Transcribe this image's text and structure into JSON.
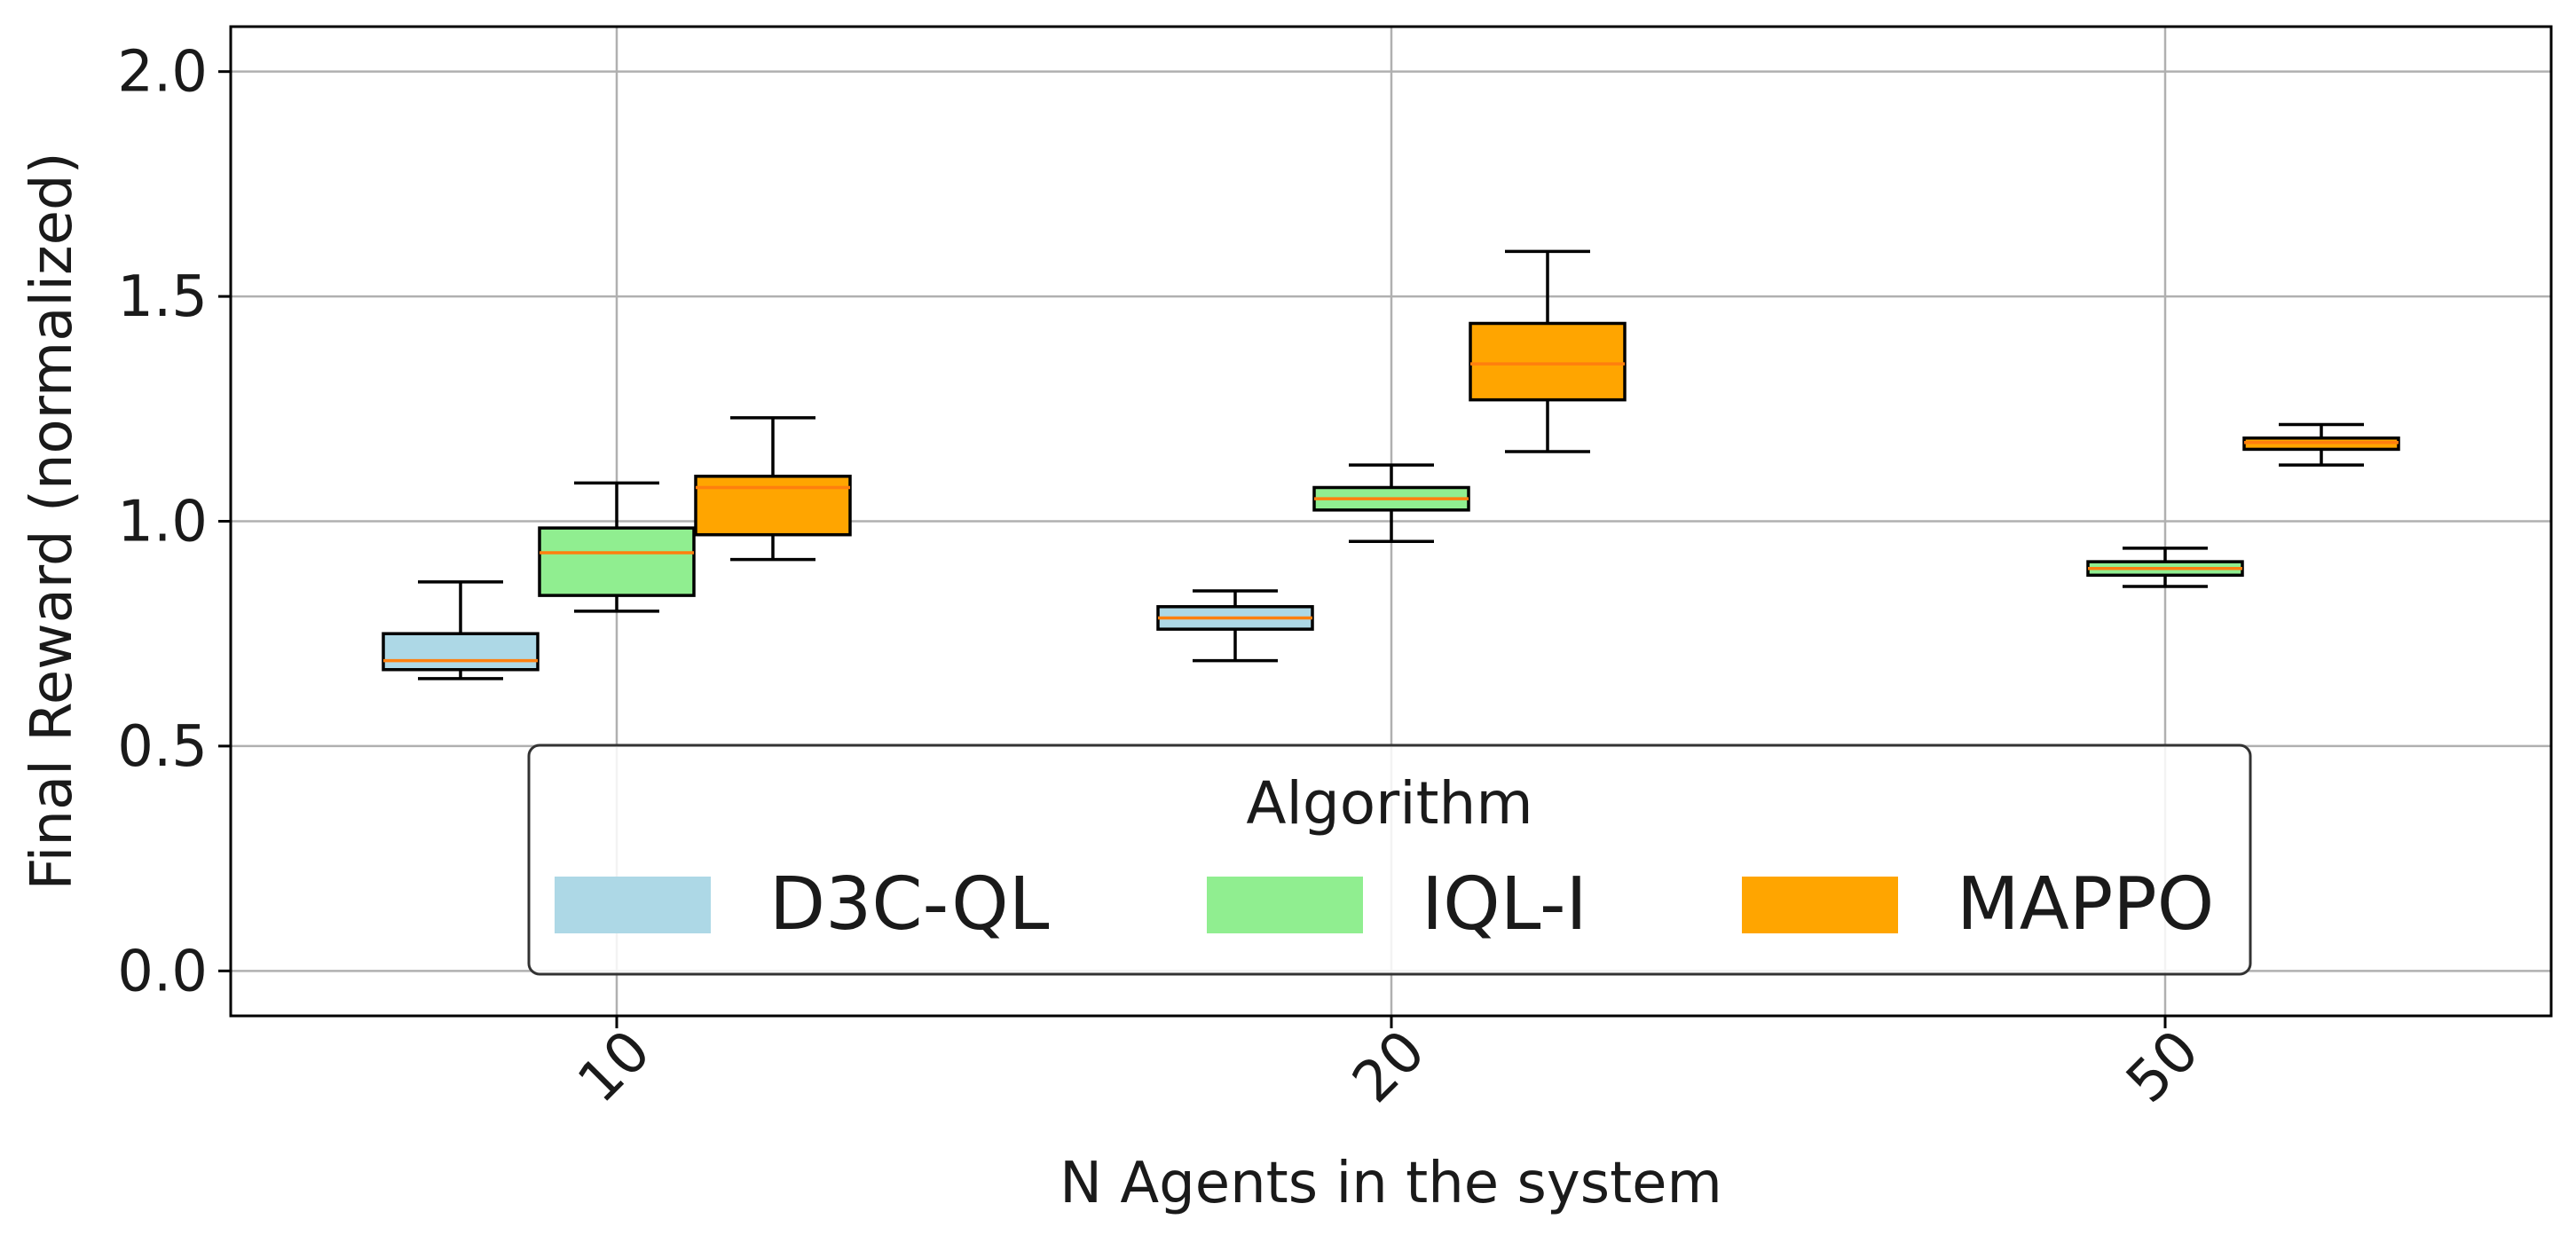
{
  "chart_data": {
    "type": "boxplot",
    "title": "",
    "xlabel": "N Agents in the system",
    "ylabel": "Final Reward (normalized)",
    "ylim": [
      -0.1,
      2.1
    ],
    "yticks": [
      0.0,
      0.5,
      1.0,
      1.5,
      2.0
    ],
    "ytick_labels": [
      "0.0",
      "0.5",
      "1.0",
      "1.5",
      "2.0"
    ],
    "categories": [
      "10",
      "20",
      "50"
    ],
    "grid": true,
    "legend": {
      "title": "Algorithm",
      "placement": "lower-center"
    },
    "series": [
      {
        "name": "D3C-QL",
        "color": "#add8e6",
        "boxes": [
          {
            "whislo": 0.65,
            "q1": 0.67,
            "med": 0.69,
            "q3": 0.75,
            "whishi": 0.865
          },
          {
            "whislo": 0.69,
            "q1": 0.76,
            "med": 0.785,
            "q3": 0.81,
            "whishi": 0.845
          },
          null
        ]
      },
      {
        "name": "IQL-I",
        "color": "#90ee90",
        "boxes": [
          {
            "whislo": 0.8,
            "q1": 0.835,
            "med": 0.93,
            "q3": 0.985,
            "whishi": 1.085
          },
          {
            "whislo": 0.955,
            "q1": 1.025,
            "med": 1.05,
            "q3": 1.075,
            "whishi": 1.125
          },
          {
            "whislo": 0.855,
            "q1": 0.88,
            "med": 0.895,
            "q3": 0.91,
            "whishi": 0.94
          }
        ]
      },
      {
        "name": "MAPPO",
        "color": "#ffa500",
        "boxes": [
          {
            "whislo": 0.915,
            "q1": 0.97,
            "med": 1.075,
            "q3": 1.1,
            "whishi": 1.23
          },
          {
            "whislo": 1.155,
            "q1": 1.27,
            "med": 1.35,
            "q3": 1.44,
            "whishi": 1.6
          },
          {
            "whislo": 1.125,
            "q1": 1.16,
            "med": 1.175,
            "q3": 1.185,
            "whishi": 1.215
          }
        ]
      }
    ]
  }
}
